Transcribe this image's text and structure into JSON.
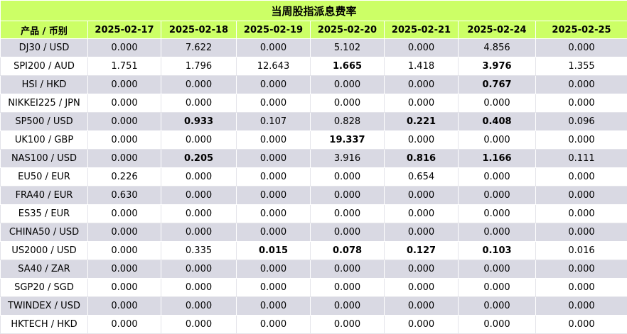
{
  "title": "当周股指派息费率",
  "columns": [
    "产品 / 币别",
    "2025-02-17",
    "2025-02-18",
    "2025-02-19",
    "2025-02-20",
    "2025-02-21",
    "2025-02-24",
    "2025-02-25"
  ],
  "rows": [
    {
      "product": "DJ30 / USD",
      "values": [
        "0.000",
        "7.622",
        "0.000",
        "5.102",
        "0.000",
        "4.856",
        "0.000"
      ],
      "bold": [
        false,
        false,
        false,
        false,
        false,
        false,
        false
      ]
    },
    {
      "product": "SPI200 / AUD",
      "values": [
        "1.751",
        "1.796",
        "12.643",
        "1.665",
        "1.418",
        "3.976",
        "1.355"
      ],
      "bold": [
        false,
        false,
        false,
        true,
        false,
        true,
        false
      ]
    },
    {
      "product": "HSI / HKD",
      "values": [
        "0.000",
        "0.000",
        "0.000",
        "0.000",
        "0.000",
        "0.767",
        "0.000"
      ],
      "bold": [
        false,
        false,
        false,
        false,
        false,
        true,
        false
      ]
    },
    {
      "product": "NIKKEI225 / JPN",
      "values": [
        "0.000",
        "0.000",
        "0.000",
        "0.000",
        "0.000",
        "0.000",
        "0.000"
      ],
      "bold": [
        false,
        false,
        false,
        false,
        false,
        false,
        false
      ]
    },
    {
      "product": "SP500 / USD",
      "values": [
        "0.000",
        "0.933",
        "0.107",
        "0.828",
        "0.221",
        "0.408",
        "0.096"
      ],
      "bold": [
        false,
        true,
        false,
        false,
        true,
        true,
        false
      ]
    },
    {
      "product": "UK100 / GBP",
      "values": [
        "0.000",
        "0.000",
        "0.000",
        "19.337",
        "0.000",
        "0.000",
        "0.000"
      ],
      "bold": [
        false,
        false,
        false,
        true,
        false,
        false,
        false
      ]
    },
    {
      "product": "NAS100 / USD",
      "values": [
        "0.000",
        "0.205",
        "0.000",
        "3.916",
        "0.816",
        "1.166",
        "0.111"
      ],
      "bold": [
        false,
        true,
        false,
        false,
        true,
        true,
        false
      ]
    },
    {
      "product": "EU50 / EUR",
      "values": [
        "0.226",
        "0.000",
        "0.000",
        "0.000",
        "0.654",
        "0.000",
        "0.000"
      ],
      "bold": [
        false,
        false,
        false,
        false,
        false,
        false,
        false
      ]
    },
    {
      "product": "FRA40 / EUR",
      "values": [
        "0.630",
        "0.000",
        "0.000",
        "0.000",
        "0.000",
        "0.000",
        "0.000"
      ],
      "bold": [
        false,
        false,
        false,
        false,
        false,
        false,
        false
      ]
    },
    {
      "product": "ES35 / EUR",
      "values": [
        "0.000",
        "0.000",
        "0.000",
        "0.000",
        "0.000",
        "0.000",
        "0.000"
      ],
      "bold": [
        false,
        false,
        false,
        false,
        false,
        false,
        false
      ]
    },
    {
      "product": "CHINA50 / USD",
      "values": [
        "0.000",
        "0.000",
        "0.000",
        "0.000",
        "0.000",
        "0.000",
        "0.000"
      ],
      "bold": [
        false,
        false,
        false,
        false,
        false,
        false,
        false
      ]
    },
    {
      "product": "US2000 / USD",
      "values": [
        "0.000",
        "0.335",
        "0.015",
        "0.078",
        "0.127",
        "0.103",
        "0.016"
      ],
      "bold": [
        false,
        false,
        true,
        true,
        true,
        true,
        false
      ]
    },
    {
      "product": "SA40 / ZAR",
      "values": [
        "0.000",
        "0.000",
        "0.000",
        "0.000",
        "0.000",
        "0.000",
        "0.000"
      ],
      "bold": [
        false,
        false,
        false,
        false,
        false,
        false,
        false
      ]
    },
    {
      "product": "SGP20 / SGD",
      "values": [
        "0.000",
        "0.000",
        "0.000",
        "0.000",
        "0.000",
        "0.000",
        "0.000"
      ],
      "bold": [
        false,
        false,
        false,
        false,
        false,
        false,
        false
      ]
    },
    {
      "product": "TWINDEX / USD",
      "values": [
        "0.000",
        "0.000",
        "0.000",
        "0.000",
        "0.000",
        "0.000",
        "0.000"
      ],
      "bold": [
        false,
        false,
        false,
        false,
        false,
        false,
        false
      ]
    },
    {
      "product": "HKTECH / HKD",
      "values": [
        "0.000",
        "0.000",
        "0.000",
        "0.000",
        "0.000",
        "0.000",
        "0.000"
      ],
      "bold": [
        false,
        false,
        false,
        false,
        false,
        false,
        false
      ]
    }
  ]
}
